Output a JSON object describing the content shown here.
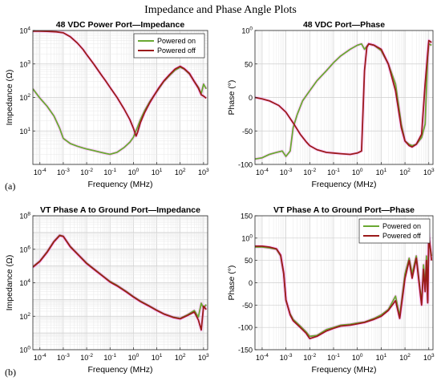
{
  "figure": {
    "suptitle": "Impedance and Phase Angle Plots",
    "row_labels": [
      "(a)",
      "(b)"
    ]
  },
  "colors": {
    "powered_on": "#6aa832",
    "powered_off": "#9b1a1a",
    "halo": "#ff66ff"
  },
  "chart_data": [
    {
      "type": "line",
      "title": "48 VDC Power Port—Impedance",
      "xlabel": "Frequency (MHz)",
      "ylabel": "Impedance (Ω)",
      "xscale": "log",
      "yscale": "log",
      "xlim": [
        5e-05,
        1500
      ],
      "ylim": [
        1,
        10000
      ],
      "xticks": [
        "10-4",
        "10-3",
        "10-2",
        "10-1",
        "100",
        "101",
        "102",
        "103"
      ],
      "yticks": [
        "101",
        "102",
        "103",
        "104"
      ],
      "grid": true,
      "legend": "top-right",
      "series": [
        {
          "name": "Powered on",
          "x": [
            5e-05,
            0.0001,
            0.0002,
            0.0004,
            0.0007,
            0.001,
            0.002,
            0.004,
            0.007,
            0.01,
            0.02,
            0.04,
            0.07,
            0.1,
            0.2,
            0.4,
            0.7,
            1,
            1.2,
            1.5,
            2,
            3,
            5,
            8,
            12,
            20,
            35,
            60,
            100,
            150,
            250,
            400,
            600,
            800,
            1000,
            1300
          ],
          "y": [
            180,
            95,
            55,
            28,
            12,
            6,
            4.2,
            3.5,
            3.1,
            2.9,
            2.6,
            2.3,
            2.1,
            2.0,
            2.3,
            3.2,
            4.6,
            6.5,
            9,
            13,
            22,
            40,
            75,
            120,
            180,
            300,
            450,
            650,
            800,
            700,
            500,
            300,
            200,
            130,
            250,
            180
          ]
        },
        {
          "name": "Powered off",
          "x": [
            5e-05,
            0.0001,
            0.0002,
            0.0005,
            0.001,
            0.002,
            0.004,
            0.007,
            0.01,
            0.02,
            0.04,
            0.07,
            0.1,
            0.2,
            0.4,
            0.7,
            1,
            1.3,
            1.5,
            2,
            3,
            5,
            8,
            12,
            20,
            35,
            60,
            100,
            150,
            250,
            400,
            600,
            800,
            1000,
            1300
          ],
          "y": [
            9500,
            9500,
            9400,
            9100,
            8500,
            6500,
            4200,
            2700,
            1900,
            1000,
            500,
            290,
            200,
            100,
            45,
            22,
            12,
            7,
            9,
            18,
            35,
            70,
            120,
            190,
            310,
            480,
            700,
            850,
            720,
            520,
            300,
            190,
            120,
            110,
            95
          ]
        }
      ]
    },
    {
      "type": "line",
      "title": "48 VDC Port—Phase",
      "xlabel": "Frequency (MHz)",
      "ylabel": "Phase (°)",
      "xscale": "log",
      "yscale": "linear",
      "xlim": [
        5e-05,
        1500
      ],
      "ylim": [
        -100,
        100
      ],
      "xticks": [
        "10-4",
        "10-3",
        "10-2",
        "10-1",
        "100",
        "101",
        "102",
        "103"
      ],
      "yticks": [
        "-100",
        "-50",
        "0",
        "50",
        "100"
      ],
      "grid": true,
      "series": [
        {
          "name": "Powered on",
          "x": [
            5e-05,
            0.0001,
            0.0002,
            0.0004,
            0.0007,
            0.001,
            0.0015,
            0.002,
            0.003,
            0.005,
            0.01,
            0.02,
            0.05,
            0.1,
            0.2,
            0.5,
            1,
            1.5,
            2,
            3,
            5,
            10,
            20,
            40,
            70,
            100,
            150,
            200,
            300,
            500,
            700,
            900,
            1000,
            1300
          ],
          "y": [
            -92,
            -90,
            -85,
            -82,
            -80,
            -88,
            -80,
            -45,
            -25,
            -5,
            10,
            25,
            40,
            52,
            62,
            72,
            78,
            80,
            72,
            80,
            78,
            70,
            50,
            20,
            -40,
            -65,
            -70,
            -72,
            -70,
            -60,
            -40,
            60,
            80,
            78
          ]
        },
        {
          "name": "Powered off",
          "x": [
            5e-05,
            0.0001,
            0.0002,
            0.0005,
            0.001,
            0.002,
            0.004,
            0.007,
            0.01,
            0.02,
            0.05,
            0.1,
            0.2,
            0.5,
            1,
            1.5,
            2,
            2.5,
            3,
            5,
            10,
            20,
            40,
            70,
            100,
            150,
            200,
            300,
            500,
            700,
            1000,
            1300
          ],
          "y": [
            0,
            -2,
            -5,
            -12,
            -22,
            -38,
            -55,
            -66,
            -72,
            -78,
            -82,
            -83,
            -84,
            -85,
            -83,
            -80,
            40,
            75,
            80,
            78,
            72,
            50,
            10,
            -45,
            -65,
            -72,
            -74,
            -70,
            -55,
            20,
            85,
            82
          ]
        }
      ]
    },
    {
      "type": "line",
      "title": "VT Phase A to Ground Port—Impedance",
      "xlabel": "Frequency (MHz)",
      "ylabel": "Impedance (Ω)",
      "xscale": "log",
      "yscale": "log",
      "xlim": [
        5e-05,
        1500
      ],
      "ylim": [
        1,
        100000000
      ],
      "xticks": [
        "10-4",
        "10-3",
        "10-2",
        "10-1",
        "100",
        "101",
        "102",
        "103"
      ],
      "yticks": [
        "100",
        "102",
        "104",
        "106",
        "108"
      ],
      "grid": true,
      "series": [
        {
          "name": "Powered on",
          "x": [
            5e-05,
            0.0001,
            0.0002,
            0.0004,
            0.0007,
            0.001,
            0.002,
            0.005,
            0.01,
            0.02,
            0.05,
            0.1,
            0.2,
            0.5,
            1,
            2,
            5,
            10,
            20,
            50,
            100,
            200,
            400,
            600,
            800,
            1000,
            1300
          ],
          "y": [
            90000,
            200000,
            700000,
            3000000,
            7000000,
            6000000,
            1500000,
            400000,
            150000,
            70000,
            25000,
            12000,
            7000,
            3000,
            1500,
            800,
            400,
            230,
            140,
            90,
            75,
            120,
            220,
            90,
            600,
            300,
            500
          ]
        },
        {
          "name": "Powered off",
          "x": [
            5e-05,
            0.0001,
            0.0002,
            0.0004,
            0.0007,
            0.001,
            0.002,
            0.005,
            0.01,
            0.02,
            0.05,
            0.1,
            0.2,
            0.5,
            1,
            2,
            5,
            10,
            20,
            50,
            100,
            200,
            400,
            600,
            800,
            1000,
            1300
          ],
          "y": [
            85000,
            190000,
            650000,
            2800000,
            6500000,
            5800000,
            1400000,
            380000,
            140000,
            65000,
            24000,
            11000,
            6500,
            2800,
            1400,
            750,
            380,
            220,
            135,
            85,
            70,
            110,
            180,
            60,
            15,
            400,
            250
          ]
        }
      ]
    },
    {
      "type": "line",
      "title": "VT Phase A to Ground Port—Phase",
      "xlabel": "Frequency (MHz)",
      "ylabel": "Phase (°)",
      "xscale": "log",
      "yscale": "linear",
      "xlim": [
        5e-05,
        1500
      ],
      "ylim": [
        -150,
        150
      ],
      "xticks": [
        "10-4",
        "10-3",
        "10-2",
        "10-1",
        "100",
        "101",
        "102",
        "103"
      ],
      "yticks": [
        "-150",
        "-100",
        "-50",
        "0",
        "50",
        "100",
        "150"
      ],
      "grid": true,
      "legend": "top-right",
      "series": [
        {
          "name": "Powered on",
          "x": [
            5e-05,
            0.0001,
            0.0002,
            0.0004,
            0.0006,
            0.0008,
            0.001,
            0.0015,
            0.002,
            0.004,
            0.007,
            0.01,
            0.02,
            0.05,
            0.1,
            0.2,
            0.5,
            1,
            2,
            5,
            10,
            20,
            40,
            60,
            100,
            150,
            200,
            300,
            500,
            600,
            700,
            800,
            900,
            1000,
            1300
          ],
          "y": [
            80,
            80,
            78,
            75,
            60,
            20,
            -40,
            -70,
            -82,
            -97,
            -110,
            -120,
            -118,
            -105,
            -100,
            -95,
            -93,
            -90,
            -88,
            -80,
            -72,
            -60,
            -30,
            -75,
            20,
            55,
            20,
            60,
            -45,
            40,
            -10,
            60,
            -40,
            100,
            60
          ]
        },
        {
          "name": "Powered off",
          "x": [
            5e-05,
            0.0001,
            0.0002,
            0.0004,
            0.0006,
            0.0008,
            0.001,
            0.0015,
            0.002,
            0.004,
            0.007,
            0.01,
            0.02,
            0.05,
            0.1,
            0.2,
            0.5,
            1,
            2,
            5,
            10,
            20,
            40,
            60,
            100,
            150,
            200,
            300,
            500,
            600,
            700,
            800,
            900,
            1000,
            1300
          ],
          "y": [
            82,
            82,
            80,
            76,
            62,
            22,
            -38,
            -72,
            -85,
            -100,
            -113,
            -125,
            -120,
            -108,
            -102,
            -97,
            -95,
            -92,
            -89,
            -82,
            -75,
            -62,
            -40,
            -80,
            10,
            50,
            10,
            55,
            -50,
            30,
            -20,
            50,
            -45,
            110,
            50
          ]
        }
      ]
    }
  ]
}
